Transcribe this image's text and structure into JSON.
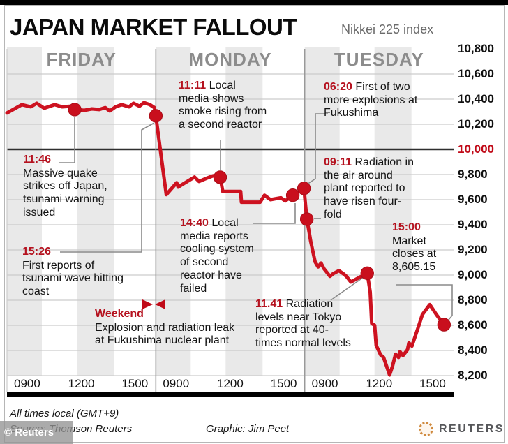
{
  "title": "JAPAN MARKET FALLOUT",
  "subtitle": "Nikkei 225 index",
  "annotations": {
    "quake": {
      "time": "11:46",
      "text": "Massive quake strikes off Japan, tsunami warning issued"
    },
    "tsunami": {
      "time": "15:26",
      "text": "First reports of tsunami wave hitting coast"
    },
    "weekend": {
      "time": "Weekend",
      "text": "Explosion and radiation leak at Fukushima nuclear plant"
    },
    "smoke": {
      "time": "11:11",
      "text": "Local media shows smoke rising from a second reactor"
    },
    "cooling": {
      "time": "14:40",
      "text": "Local media reports cooling system of second reactor have failed"
    },
    "explosions": {
      "time": "06:20",
      "text": "First of two more explosions at Fukushima"
    },
    "radiation_air": {
      "time": "09:11",
      "text": "Radiation in the air around plant reported to have risen four-fold"
    },
    "radiation_tokyo": {
      "time": "11.41",
      "text": "Radiation levels near Tokyo reported at 40-times normal levels"
    },
    "close": {
      "time": "15:00",
      "text": "Market closes at 8,605.15"
    }
  },
  "footer": {
    "note": "All times local (GMT+9)",
    "source": "Source: Thomson Reuters",
    "credit": "Graphic: Jim Peet",
    "brand": "REUTERS",
    "watermark": "© Reuters"
  },
  "colors": {
    "line": "#cd1220",
    "marker": "#c90f1d",
    "time_label": "#b5121f",
    "axis_highlight": "#c00a18",
    "grid": "#cccccc",
    "zero_line": "#2e2e2e",
    "divider": "#999999",
    "stripe": "#e9e9e9",
    "day_label": "#8c8c8c",
    "connector": "#8a8a8a",
    "axis_bar": "#000000"
  },
  "chart_data": {
    "type": "line",
    "title": "JAPAN MARKET FALLOUT",
    "subtitle": "Nikkei 225 index",
    "y_axis": {
      "min": 8200,
      "max": 10800,
      "step": 200,
      "highlight": 10000,
      "labels": [
        "10,800",
        "10,600",
        "10,400",
        "10,200",
        "10,000",
        "9,800",
        "9,600",
        "9,400",
        "9,200",
        "9,000",
        "8,800",
        "8,600",
        "8,400",
        "8,200"
      ]
    },
    "x_axis": {
      "days": [
        "FRIDAY",
        "MONDAY",
        "TUESDAY"
      ],
      "ticks_per_day": [
        "0900",
        "1200",
        "1500"
      ],
      "note": "All times local (GMT+9)"
    },
    "series": [
      {
        "name": "Nikkei 225 index",
        "points": [
          [
            0.0,
            10290
          ],
          [
            0.1,
            10356
          ],
          [
            0.16,
            10339
          ],
          [
            0.2,
            10367
          ],
          [
            0.25,
            10328
          ],
          [
            0.32,
            10356
          ],
          [
            0.37,
            10339
          ],
          [
            0.43,
            10344
          ],
          [
            0.455,
            10317
          ],
          [
            0.52,
            10311
          ],
          [
            0.57,
            10322
          ],
          [
            0.62,
            10317
          ],
          [
            0.66,
            10333
          ],
          [
            0.69,
            10306
          ],
          [
            0.73,
            10339
          ],
          [
            0.77,
            10356
          ],
          [
            0.82,
            10339
          ],
          [
            0.85,
            10367
          ],
          [
            0.89,
            10344
          ],
          [
            0.92,
            10372
          ],
          [
            0.96,
            10356
          ],
          [
            0.99,
            10333
          ],
          [
            1.0,
            10267
          ],
          [
            1.07,
            9640
          ],
          [
            1.14,
            9735
          ],
          [
            1.15,
            9700
          ],
          [
            1.17,
            9715
          ],
          [
            1.26,
            9780
          ],
          [
            1.29,
            9745
          ],
          [
            1.34,
            9770
          ],
          [
            1.385,
            9790
          ],
          [
            1.432,
            9778
          ],
          [
            1.45,
            9665
          ],
          [
            1.57,
            9665
          ],
          [
            1.575,
            9580
          ],
          [
            1.7,
            9580
          ],
          [
            1.73,
            9635
          ],
          [
            1.77,
            9600
          ],
          [
            1.84,
            9615
          ],
          [
            1.87,
            9590
          ],
          [
            1.92,
            9635
          ],
          [
            1.995,
            9690
          ],
          [
            2.014,
            9445
          ],
          [
            2.03,
            9340
          ],
          [
            2.04,
            9270
          ],
          [
            2.07,
            9105
          ],
          [
            2.09,
            9065
          ],
          [
            2.11,
            9095
          ],
          [
            2.13,
            9050
          ],
          [
            2.17,
            8990
          ],
          [
            2.19,
            9010
          ],
          [
            2.23,
            9035
          ],
          [
            2.26,
            9010
          ],
          [
            2.28,
            8990
          ],
          [
            2.31,
            8945
          ],
          [
            2.42,
            9015
          ],
          [
            2.44,
            8865
          ],
          [
            2.45,
            8615
          ],
          [
            2.47,
            8600
          ],
          [
            2.48,
            8440
          ],
          [
            2.51,
            8365
          ],
          [
            2.53,
            8345
          ],
          [
            2.57,
            8205
          ],
          [
            2.59,
            8275
          ],
          [
            2.61,
            8370
          ],
          [
            2.63,
            8345
          ],
          [
            2.64,
            8390
          ],
          [
            2.66,
            8360
          ],
          [
            2.69,
            8405
          ],
          [
            2.7,
            8460
          ],
          [
            2.72,
            8435
          ],
          [
            2.77,
            8610
          ],
          [
            2.79,
            8685
          ],
          [
            2.84,
            8765
          ],
          [
            2.885,
            8685
          ],
          [
            2.936,
            8605
          ]
        ]
      }
    ],
    "markers": [
      {
        "u": 0.455,
        "v": 10317,
        "time": "11:46"
      },
      {
        "u": 1.0,
        "v": 10267,
        "time": "15:26"
      },
      {
        "u": 1.432,
        "v": 9778,
        "time": "11:11"
      },
      {
        "u": 1.92,
        "v": 9635,
        "time": "14:40"
      },
      {
        "u": 1.995,
        "v": 9690,
        "time": "06:20"
      },
      {
        "u": 2.014,
        "v": 9445,
        "time": "09:11"
      },
      {
        "u": 2.42,
        "v": 9015,
        "time": "11.41"
      },
      {
        "u": 2.936,
        "v": 8605,
        "time": "15:00"
      }
    ],
    "close_value": "8,605.15"
  }
}
